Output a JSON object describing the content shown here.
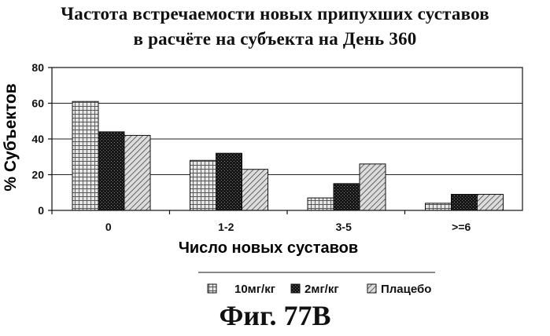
{
  "title_line1": "Частота встречаемости новых припухших суставов",
  "title_line2": "в расчёте на субъекта на День 360",
  "figure_label": "Фиг. 77В",
  "colors": {
    "ink": "#111111",
    "fill_light": "#d8d8d8",
    "fill_dark": "#1a1a1a",
    "fill_mid": "#bdbdbd"
  },
  "chart_data": {
    "type": "bar",
    "xlabel": "Число новых суставов",
    "ylabel": "% Субъектов",
    "ylim": [
      0,
      80
    ],
    "yticks": [
      0,
      20,
      40,
      60,
      80
    ],
    "grid": true,
    "legend_position": "bottom",
    "categories": [
      "0",
      "1-2",
      "3-5",
      ">=6"
    ],
    "series": [
      {
        "name": "10мг/кг",
        "values": [
          61,
          28,
          7,
          4
        ]
      },
      {
        "name": "2мг/кг",
        "values": [
          44,
          32,
          15,
          9
        ]
      },
      {
        "name": "Плацебо",
        "values": [
          42,
          23,
          26,
          9
        ]
      }
    ]
  }
}
